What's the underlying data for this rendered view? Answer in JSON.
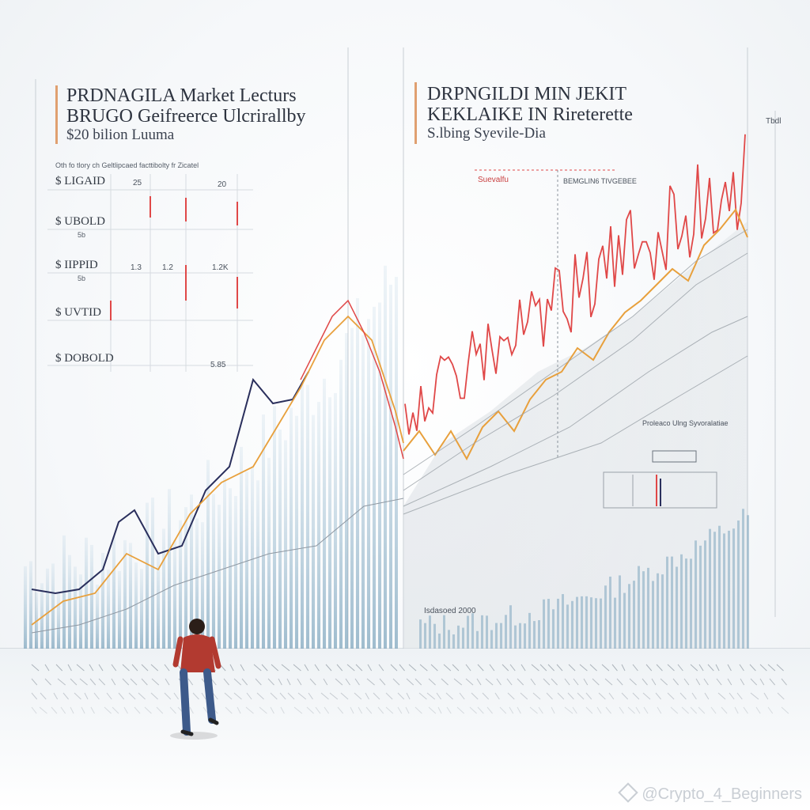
{
  "left_panel": {
    "title_line1": "PRDNAGILA Market Lecturs",
    "title_line2": "BRUGO Geifreerce Ulcrirallby",
    "title_line3": "$20 bilion Luuma",
    "subtitle": "Oth fo tlory ch Geltlipcaed facttibolty fr Zicatel",
    "row_labels": [
      "$ LIGAID",
      "$ UBOLD",
      "$ IIPPID",
      "$ UVTID",
      "$ DOBOLD"
    ],
    "row_sublabels": [
      "",
      "5b",
      "5b",
      "",
      ""
    ],
    "cells": [
      "25",
      "20",
      "1.3",
      "1.2",
      "1.2K",
      "5.85"
    ]
  },
  "right_panel": {
    "title_line1": "DRPNGILDI MIN JEKIT",
    "title_line2": "KEKLAIKE IN Rireterette",
    "title_line3": "S.lbing Syevile-Dia",
    "corner_label": "Tbdl",
    "annotation_1": "Suevalfu",
    "annotation_2": "BEMGLIN6 TIVGEBEE",
    "annotation_3": "Proleaco Ulng Syvoralatiae",
    "annotation_4": "Isdasoed 2000"
  },
  "colors": {
    "red_series": "#e04848",
    "orange_series": "#e8a03c",
    "navy_series": "#2a2f5c",
    "blue_bars": "#7fa7c0",
    "gray_series": "#9aa1a8"
  },
  "figure": {
    "name": "person-walking"
  },
  "watermark": {
    "text": "@Crypto_4_Beginners",
    "icon": "diamond-icon"
  }
}
